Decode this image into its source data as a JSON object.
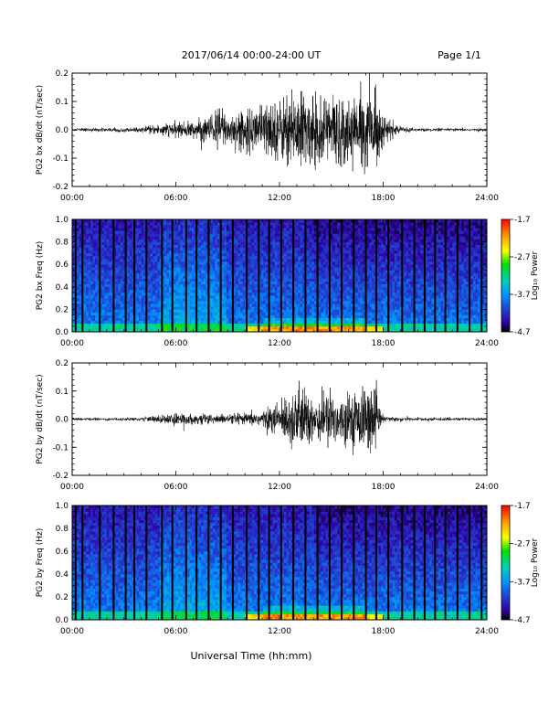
{
  "header": {
    "title": "2017/06/14  00:00-24:00 UT",
    "page": "Page 1/1"
  },
  "footer": {
    "xlabel": "Universal Time (hh:mm)"
  },
  "colorbar": {
    "ticks": [
      "-1.7",
      "-2.7",
      "-3.7",
      "-4.7"
    ],
    "label": "Log₁₀ Power",
    "colors": [
      "#ff0000",
      "#ffa000",
      "#ffff00",
      "#00e000",
      "#00d0c0",
      "#0090ff",
      "#2040d0",
      "#3000a0",
      "#000000"
    ]
  },
  "chart_data": [
    {
      "type": "line",
      "ylabel": "PG2 bx dB/dt (nT/sec)",
      "xlim": [
        0,
        24
      ],
      "ylim": [
        -0.2,
        0.2
      ],
      "x_ticks": [
        "00:00",
        "06:00",
        "12:00",
        "18:00",
        "24:00"
      ],
      "y_ticks": [
        "0.2",
        "0.1",
        "0.0",
        "-0.1",
        "-0.2"
      ],
      "envelope": {
        "hours": [
          0,
          4,
          5,
          6,
          7,
          8,
          8.5,
          9,
          10,
          11,
          12,
          12.5,
          13,
          14,
          15,
          15.5,
          16,
          16.5,
          17,
          17.5,
          18,
          19,
          20,
          24
        ],
        "amplitude_nT_per_s": [
          0.006,
          0.008,
          0.02,
          0.025,
          0.03,
          0.05,
          0.09,
          0.06,
          0.07,
          0.1,
          0.11,
          0.13,
          0.15,
          0.12,
          0.14,
          0.13,
          0.12,
          0.1,
          0.14,
          0.15,
          0.05,
          0.01,
          0.006,
          0.005
        ]
      }
    },
    {
      "type": "heatmap",
      "ylabel": "PG2 bx Freq (Hz)",
      "xlim": [
        0,
        24
      ],
      "ylim": [
        0.0,
        1.0
      ],
      "x_ticks": [
        "00:00",
        "06:00",
        "12:00",
        "18:00",
        "24:00"
      ],
      "y_ticks": [
        "1.0",
        "0.8",
        "0.6",
        "0.4",
        "0.2",
        "0.0"
      ],
      "color_range_log10_power": [
        -4.7,
        -1.7
      ],
      "data_gap_hours": [
        0.2,
        0.6,
        1.6,
        2.4,
        3.1,
        3.6,
        4.3,
        5.2,
        5.8,
        6.6,
        7.2,
        7.9,
        8.6,
        9.3,
        10.1,
        10.8,
        11.4,
        12.1,
        12.8,
        13.5,
        14.2,
        14.9,
        15.6,
        16.3,
        17.0,
        17.6,
        18.3,
        19.1,
        19.8,
        20.4,
        21.0,
        21.6,
        22.3,
        23.0,
        23.7
      ]
    },
    {
      "type": "line",
      "ylabel": "PG2 by dB/dt (nT/sec)",
      "xlim": [
        0,
        24
      ],
      "ylim": [
        -0.2,
        0.2
      ],
      "x_ticks": [
        "00:00",
        "06:00",
        "12:00",
        "18:00",
        "24:00"
      ],
      "y_ticks": [
        "0.2",
        "0.1",
        "0.0",
        "-0.1",
        "-0.2"
      ],
      "envelope": {
        "hours": [
          0,
          4,
          5,
          6,
          7,
          8,
          9,
          10,
          11,
          12,
          12.5,
          13,
          14,
          15,
          15.5,
          16,
          16.5,
          17,
          17.5,
          18,
          19,
          20,
          24
        ],
        "amplitude_nT_per_s": [
          0.005,
          0.006,
          0.015,
          0.02,
          0.018,
          0.02,
          0.015,
          0.02,
          0.03,
          0.06,
          0.09,
          0.12,
          0.09,
          0.1,
          0.08,
          0.09,
          0.1,
          0.12,
          0.1,
          0.01,
          0.008,
          0.006,
          0.005
        ]
      }
    },
    {
      "type": "heatmap",
      "ylabel": "PG2 by Freq (Hz)",
      "xlim": [
        0,
        24
      ],
      "ylim": [
        0.0,
        1.0
      ],
      "x_ticks": [
        "00:00",
        "06:00",
        "12:00",
        "18:00",
        "24:00"
      ],
      "y_ticks": [
        "1.0",
        "0.8",
        "0.6",
        "0.4",
        "0.2",
        "0.0"
      ],
      "color_range_log10_power": [
        -4.7,
        -1.7
      ],
      "data_gap_hours": [
        0.2,
        0.6,
        1.6,
        2.4,
        3.1,
        3.6,
        4.3,
        5.2,
        5.8,
        6.6,
        7.2,
        7.9,
        8.6,
        9.3,
        10.1,
        10.8,
        11.4,
        12.1,
        12.8,
        13.5,
        14.2,
        14.9,
        15.6,
        16.3,
        17.0,
        17.6,
        18.3,
        19.1,
        19.8,
        20.4,
        21.0,
        21.6,
        22.3,
        23.0,
        23.7
      ]
    }
  ]
}
